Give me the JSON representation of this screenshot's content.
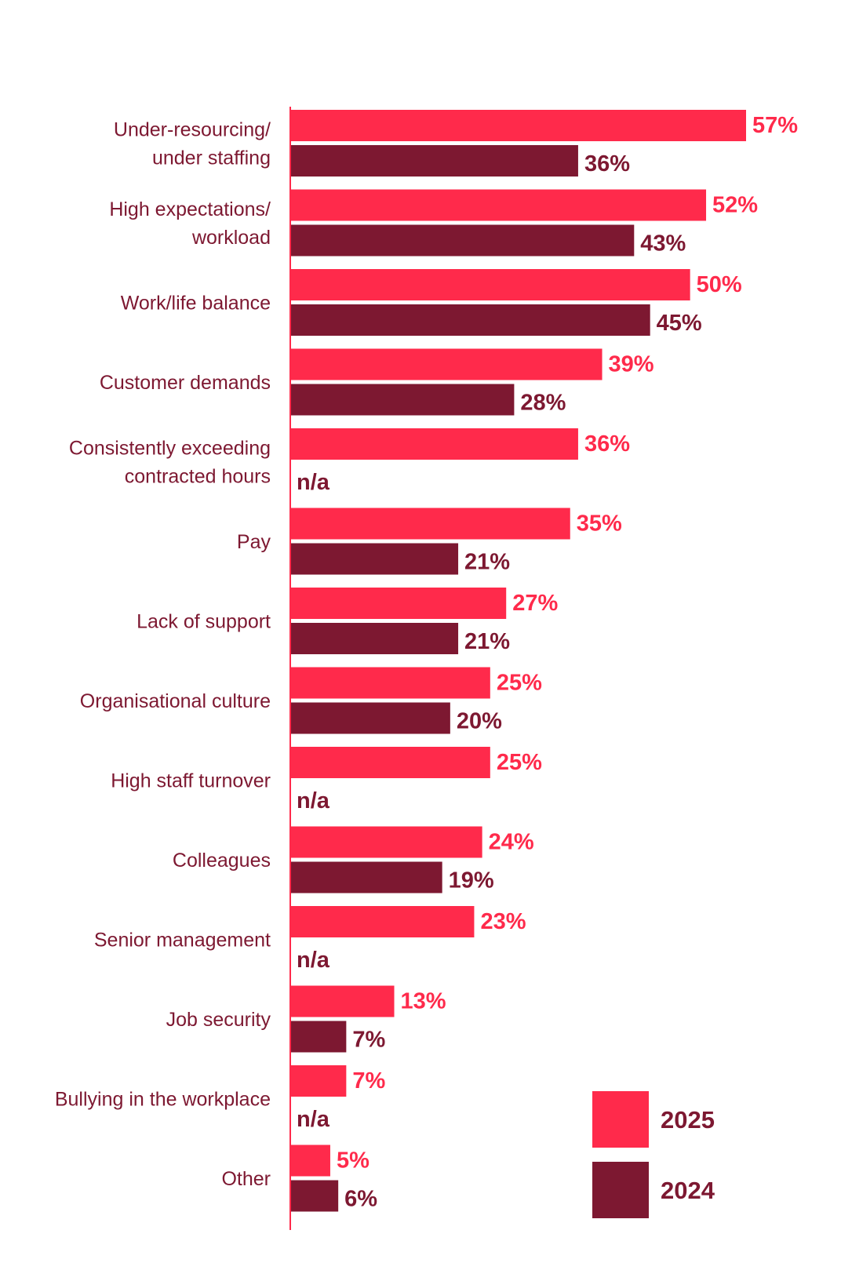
{
  "colors": {
    "series_2025": "#ff2a4b",
    "series_2024": "#7d1831",
    "text": "#7d1831",
    "axis": "#ff2a4b"
  },
  "chart_data": {
    "type": "bar",
    "orientation": "horizontal",
    "title": "",
    "xlabel": "",
    "ylabel": "",
    "xlim": [
      0,
      57
    ],
    "grid": false,
    "legend_position": "bottom-right",
    "categories": [
      [
        "Under-resourcing/",
        "under staffing"
      ],
      [
        "High expectations/",
        "workload"
      ],
      [
        "Work/life balance"
      ],
      [
        "Customer demands"
      ],
      [
        "Consistently exceeding",
        "contracted hours"
      ],
      [
        "Pay"
      ],
      [
        "Lack of support"
      ],
      [
        "Organisational culture"
      ],
      [
        "High staff turnover"
      ],
      [
        "Colleagues"
      ],
      [
        "Senior management"
      ],
      [
        "Job security"
      ],
      [
        "Bullying in the workplace"
      ],
      [
        "Other"
      ]
    ],
    "series": [
      {
        "name": "2025",
        "values": [
          57,
          52,
          50,
          39,
          36,
          35,
          27,
          25,
          25,
          24,
          23,
          13,
          7,
          5
        ],
        "labels": [
          "57%",
          "52%",
          "50%",
          "39%",
          "36%",
          "35%",
          "27%",
          "25%",
          "25%",
          "24%",
          "23%",
          "13%",
          "7%",
          "5%"
        ]
      },
      {
        "name": "2024",
        "values": [
          36,
          43,
          45,
          28,
          null,
          21,
          21,
          20,
          null,
          19,
          null,
          7,
          null,
          6
        ],
        "labels": [
          "36%",
          "43%",
          "45%",
          "28%",
          "n/a",
          "21%",
          "21%",
          "20%",
          "n/a",
          "19%",
          "n/a",
          "7%",
          "n/a",
          "6%"
        ]
      }
    ]
  }
}
